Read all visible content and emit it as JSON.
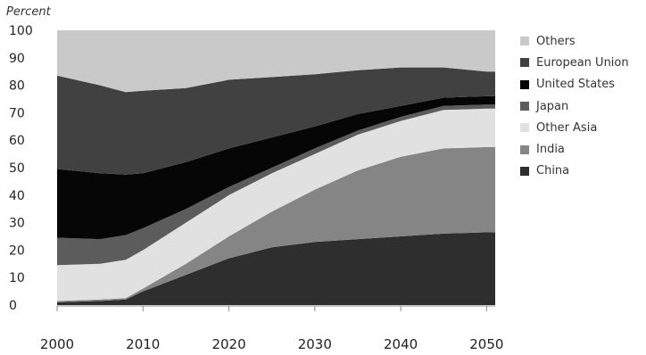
{
  "chart_data": {
    "type": "area",
    "stacked": true,
    "unit_label": "Percent",
    "xlabel": "",
    "ylabel": "",
    "xlim": [
      2000,
      2051
    ],
    "ylim": [
      0,
      100
    ],
    "x_ticks": [
      2000,
      2010,
      2020,
      2030,
      2040,
      2050
    ],
    "y_ticks": [
      0,
      10,
      20,
      30,
      40,
      50,
      60,
      70,
      80,
      90,
      100
    ],
    "x": [
      2000,
      2005,
      2008,
      2010,
      2015,
      2020,
      2025,
      2030,
      2035,
      2040,
      2045,
      2050
    ],
    "series": [
      {
        "name": "China",
        "color": "#2e2e2e",
        "values": [
          1,
          1.5,
          2,
          5,
          11,
          17,
          21,
          23,
          24,
          25,
          26,
          26.5
        ]
      },
      {
        "name": "India",
        "color": "#858585",
        "values": [
          0.5,
          0.5,
          0.5,
          1,
          4,
          8,
          13,
          19,
          25,
          29,
          31,
          31
        ]
      },
      {
        "name": "Other Asia",
        "color": "#e1e1e1",
        "values": [
          13,
          13,
          14,
          14,
          15,
          15,
          14,
          13,
          13,
          13,
          14,
          14
        ]
      },
      {
        "name": "Japan",
        "color": "#5c5c5c",
        "values": [
          10,
          9,
          9,
          8,
          5,
          3,
          2,
          2,
          1.5,
          1.5,
          1.5,
          1.5
        ]
      },
      {
        "name": "United States",
        "color": "#060606",
        "values": [
          25,
          24,
          22,
          20,
          17,
          14,
          11,
          8,
          6,
          4,
          3,
          3
        ]
      },
      {
        "name": "European Union",
        "color": "#414141",
        "values": [
          34,
          32,
          30,
          30,
          27,
          25,
          22,
          19,
          16,
          14,
          11,
          9
        ]
      },
      {
        "name": "Others",
        "color": "#c9c9c9",
        "values": [
          16.5,
          20,
          22.5,
          22,
          21,
          18,
          17,
          16,
          14.5,
          13.5,
          13.5,
          15
        ]
      }
    ]
  },
  "legend": {
    "items": [
      {
        "label": "Others",
        "color": "#c9c9c9"
      },
      {
        "label": "European Union",
        "color": "#414141"
      },
      {
        "label": "United States",
        "color": "#060606"
      },
      {
        "label": "Japan",
        "color": "#5c5c5c"
      },
      {
        "label": "Other Asia",
        "color": "#e1e1e1"
      },
      {
        "label": "India",
        "color": "#858585"
      },
      {
        "label": "China",
        "color": "#2e2e2e"
      }
    ]
  }
}
